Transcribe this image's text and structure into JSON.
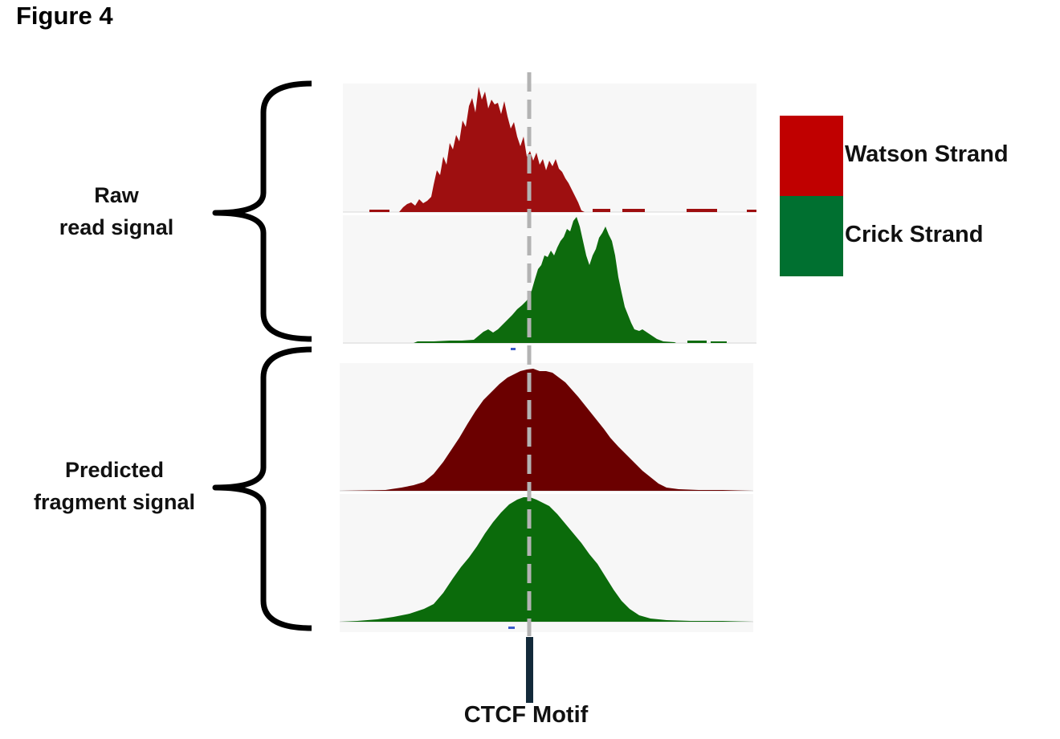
{
  "figure_title": "Figure 4",
  "groups": {
    "raw_line1": "Raw",
    "raw_line2": "read signal",
    "pred_line1": "Predicted",
    "pred_line2": "fragment signal"
  },
  "legend": {
    "watson": {
      "label": "Watson Strand",
      "color": "#c00000"
    },
    "crick": {
      "label": "Crick Strand",
      "color": "#007030"
    }
  },
  "motif_label": "CTCF Motif",
  "colors": {
    "watson_raw": "#9e0f10",
    "crick_raw": "#0d6b0d",
    "watson_pred": "#6b0000",
    "crick_pred": "#0b6b0b",
    "motif_bar": "#132a3a",
    "dashed_line": "#b3b3b3"
  }
}
